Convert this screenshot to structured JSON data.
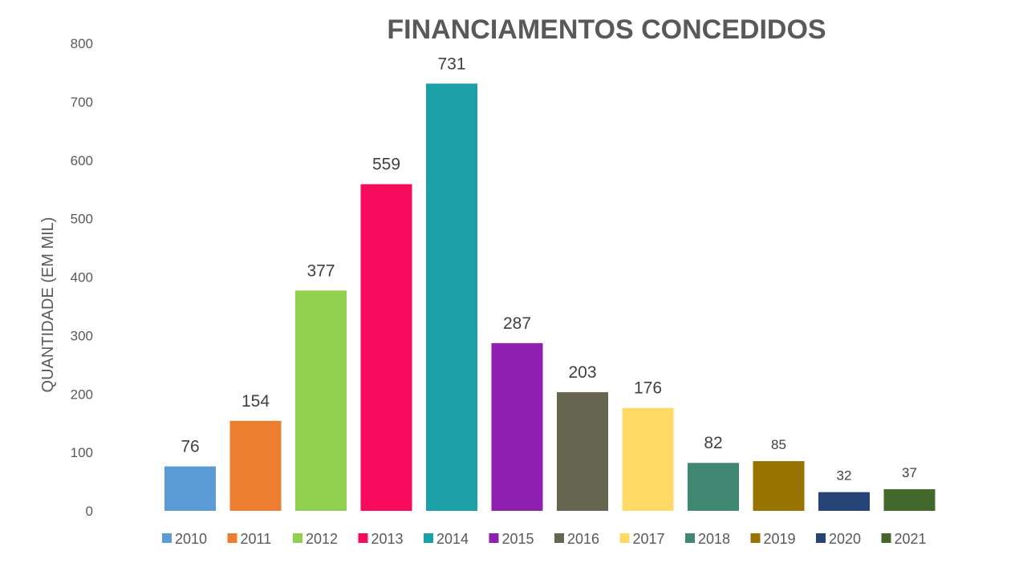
{
  "chart_data": {
    "type": "bar",
    "title": "FINANCIAMENTOS CONCEDIDOS",
    "xlabel": "",
    "ylabel": "QUANTIDADE (EM MIL)",
    "ylim": [
      0,
      800
    ],
    "yticks": [
      0,
      100,
      200,
      300,
      400,
      500,
      600,
      700,
      800
    ],
    "grid": false,
    "legend_position": "bottom",
    "categories": [
      "2010",
      "2011",
      "2012",
      "2013",
      "2014",
      "2015",
      "2016",
      "2017",
      "2018",
      "2019",
      "2020",
      "2021"
    ],
    "values": [
      76,
      154,
      377,
      559,
      731,
      287,
      203,
      176,
      82,
      85,
      32,
      37
    ],
    "colors": [
      "#5b9bd5",
      "#ed7d31",
      "#92d050",
      "#f50a5c",
      "#1aa0a6",
      "#8e1fb0",
      "#666650",
      "#ffd966",
      "#3f8770",
      "#997300",
      "#264478",
      "#43682b"
    ]
  }
}
